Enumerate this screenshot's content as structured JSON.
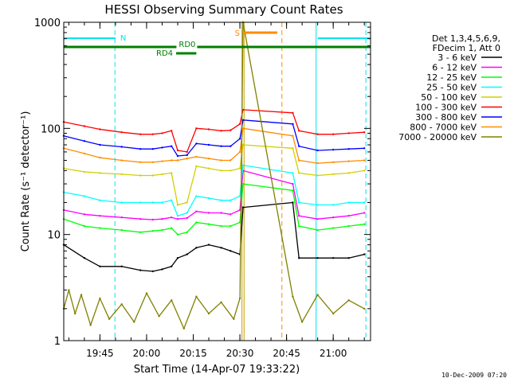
{
  "chart_data": {
    "type": "line",
    "title": "HESSI Observing Summary Count Rates",
    "xlabel": "Start Time (14-Apr-07 19:33:22)",
    "ylabel": "Count Rate (s⁻¹ detector⁻¹)",
    "y_scale": "log",
    "ylim": [
      1,
      1000
    ],
    "xlim": [
      "19:33:22",
      "21:12:00"
    ],
    "x_ticks": [
      "19:45",
      "20:00",
      "20:15",
      "20:30",
      "20:45",
      "21:00"
    ],
    "y_ticks": [
      "1",
      "10",
      "100",
      "1000"
    ],
    "grid": false,
    "legend_position": "top-right",
    "legend_header": [
      "Det 1,3,4,5,6,9,",
      "FDecim 1, Att 0"
    ],
    "footer_date": "10-Dec-2009 07:20",
    "flags": [
      {
        "label": "N",
        "color": "#00e5ee",
        "segments": [
          [
            "19:33:22",
            "19:50:00"
          ],
          [
            "20:55:00",
            "21:12:00"
          ]
        ]
      },
      {
        "label": "S",
        "color": "#ff8c00",
        "segments": [
          [
            "20:31:00",
            "20:42:00"
          ]
        ]
      },
      {
        "label": "RD0",
        "color": "#008000",
        "segments": [
          [
            "19:33:22",
            "21:12:00"
          ]
        ]
      },
      {
        "label": "RD4",
        "color": "#008000",
        "segments": [
          [
            "20:09:30",
            "20:16:00"
          ]
        ]
      }
    ],
    "vertical_lines": [
      {
        "time": "19:49:50",
        "color": "#00e5ee",
        "style": "dashed"
      },
      {
        "time": "20:30:40",
        "color": "#c8a000",
        "style": "solid"
      },
      {
        "time": "20:31:20",
        "color": "#c8a000",
        "style": "solid"
      },
      {
        "time": "20:43:30",
        "color": "#ff8c00",
        "style": "dashed"
      },
      {
        "time": "20:54:30",
        "color": "#00e5ee",
        "style": "solid"
      },
      {
        "time": "21:10:30",
        "color": "#00e5ee",
        "style": "dashed"
      }
    ],
    "series": [
      {
        "name": "3 - 6 keV",
        "color": "#000000",
        "x": [
          "19:33:22",
          "19:40",
          "19:45",
          "19:52",
          "19:58",
          "20:02",
          "20:05",
          "20:08",
          "20:10",
          "20:13",
          "20:16",
          "20:20",
          "20:24",
          "20:27",
          "20:30",
          "20:31",
          "20:47",
          "20:49",
          "20:55",
          "21:00",
          "21:05",
          "21:10"
        ],
        "y": [
          8,
          6,
          5,
          5,
          4.6,
          4.5,
          4.7,
          5,
          6,
          6.5,
          7.5,
          8,
          7.5,
          7,
          6.5,
          18,
          20,
          6,
          6,
          6,
          6,
          6.5
        ]
      },
      {
        "name": "6 - 12 keV",
        "color": "#ff00ff",
        "x": [
          "19:33:22",
          "19:40",
          "19:45",
          "19:52",
          "19:58",
          "20:02",
          "20:05",
          "20:08",
          "20:10",
          "20:13",
          "20:16",
          "20:20",
          "20:24",
          "20:27",
          "20:30",
          "20:31",
          "20:47",
          "20:49",
          "20:55",
          "21:00",
          "21:05",
          "21:10"
        ],
        "y": [
          17,
          15.5,
          15,
          14.5,
          14,
          13.8,
          14,
          14.5,
          14,
          14.3,
          16.5,
          16,
          16,
          15.5,
          17,
          40,
          30,
          15,
          14,
          14.5,
          15,
          16
        ]
      },
      {
        "name": "12 - 25 keV",
        "color": "#00ff00",
        "x": [
          "19:33:22",
          "19:40",
          "19:45",
          "19:52",
          "19:58",
          "20:02",
          "20:05",
          "20:08",
          "20:10",
          "20:13",
          "20:16",
          "20:20",
          "20:24",
          "20:27",
          "20:30",
          "20:31",
          "20:47",
          "20:49",
          "20:55",
          "21:00",
          "21:05",
          "21:10"
        ],
        "y": [
          14,
          12,
          11.5,
          11,
          10.5,
          10.8,
          11,
          11.5,
          10,
          10.5,
          13,
          12.5,
          12,
          12,
          13,
          30,
          26,
          12,
          11,
          11.5,
          12,
          12.5
        ]
      },
      {
        "name": "25 - 50 keV",
        "color": "#00ffff",
        "x": [
          "19:33:22",
          "19:40",
          "19:45",
          "19:52",
          "19:58",
          "20:02",
          "20:05",
          "20:08",
          "20:10",
          "20:13",
          "20:16",
          "20:20",
          "20:24",
          "20:27",
          "20:30",
          "20:31",
          "20:47",
          "20:49",
          "20:55",
          "21:00",
          "21:05",
          "21:10"
        ],
        "y": [
          25,
          23,
          21,
          20,
          20,
          20,
          20,
          21,
          15,
          16,
          23,
          22,
          21,
          21,
          23,
          45,
          38,
          20,
          19,
          19,
          20,
          20
        ]
      },
      {
        "name": "50 - 100 keV",
        "color": "#d0d000",
        "x": [
          "19:33:22",
          "19:40",
          "19:45",
          "19:52",
          "19:58",
          "20:02",
          "20:05",
          "20:08",
          "20:10",
          "20:13",
          "20:16",
          "20:20",
          "20:24",
          "20:27",
          "20:30",
          "20:31",
          "20:47",
          "20:49",
          "20:55",
          "21:00",
          "21:05",
          "21:10"
        ],
        "y": [
          42,
          39,
          38,
          37,
          36,
          36,
          37,
          38,
          19,
          20,
          44,
          42,
          40,
          40,
          42,
          70,
          65,
          38,
          36,
          37,
          38,
          40
        ]
      },
      {
        "name": "100 - 300 keV",
        "color": "#ff0000",
        "x": [
          "19:33:22",
          "19:40",
          "19:45",
          "19:52",
          "19:58",
          "20:02",
          "20:05",
          "20:08",
          "20:10",
          "20:13",
          "20:16",
          "20:20",
          "20:24",
          "20:27",
          "20:30",
          "20:31",
          "20:47",
          "20:49",
          "20:55",
          "21:00",
          "21:05",
          "21:10"
        ],
        "y": [
          115,
          105,
          98,
          92,
          88,
          88,
          90,
          95,
          62,
          60,
          100,
          98,
          95,
          96,
          110,
          150,
          140,
          95,
          88,
          88,
          90,
          92
        ]
      },
      {
        "name": "300 - 800 keV",
        "color": "#0000ff",
        "x": [
          "19:33:22",
          "19:40",
          "19:45",
          "19:52",
          "19:58",
          "20:02",
          "20:05",
          "20:08",
          "20:10",
          "20:13",
          "20:16",
          "20:20",
          "20:24",
          "20:27",
          "20:30",
          "20:31",
          "20:47",
          "20:49",
          "20:55",
          "21:00",
          "21:05",
          "21:10"
        ],
        "y": [
          85,
          76,
          70,
          67,
          64,
          64,
          66,
          68,
          55,
          56,
          72,
          70,
          68,
          68,
          80,
          120,
          110,
          68,
          62,
          63,
          64,
          65
        ]
      },
      {
        "name": "800 - 7000 keV",
        "color": "#ff8c00",
        "x": [
          "19:33:22",
          "19:40",
          "19:45",
          "19:52",
          "19:58",
          "20:02",
          "20:05",
          "20:08",
          "20:10",
          "20:13",
          "20:16",
          "20:20",
          "20:24",
          "20:27",
          "20:30",
          "20:31",
          "20:47",
          "20:49",
          "20:55",
          "21:00",
          "21:05",
          "21:10"
        ],
        "y": [
          65,
          58,
          53,
          50,
          48,
          48,
          49,
          50,
          50,
          52,
          54,
          52,
          50,
          50,
          60,
          100,
          85,
          50,
          47,
          48,
          49,
          50
        ]
      },
      {
        "name": "7000 - 20000 keV",
        "color": "#808000",
        "x": [
          "19:33:22",
          "19:35",
          "19:37",
          "19:39",
          "19:42",
          "19:45",
          "19:48",
          "19:52",
          "19:56",
          "20:00",
          "20:04",
          "20:08",
          "20:12",
          "20:16",
          "20:20",
          "20:24",
          "20:28",
          "20:30",
          "20:31",
          "20:47",
          "20:50",
          "20:55",
          "21:00",
          "21:05",
          "21:10"
        ],
        "y": [
          2,
          3,
          1.8,
          2.7,
          1.4,
          2.5,
          1.6,
          2.2,
          1.5,
          2.8,
          1.7,
          2.4,
          1.3,
          2.6,
          1.8,
          2.3,
          1.6,
          2.5,
          1000,
          2.6,
          1.5,
          2.7,
          1.8,
          2.4,
          2
        ]
      }
    ]
  }
}
